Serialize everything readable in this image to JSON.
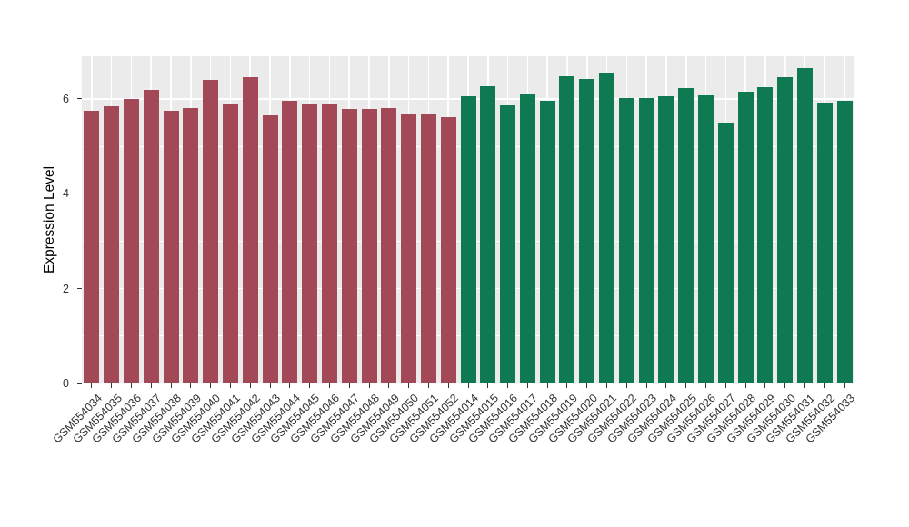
{
  "chart_data": {
    "type": "bar",
    "title": "",
    "xlabel": "",
    "ylabel": "Expression Level",
    "ylim": [
      0,
      6.9
    ],
    "yticks": [
      0,
      2,
      4,
      6
    ],
    "yticks_minor": [
      1,
      3,
      5
    ],
    "panel_bg": "#EBEBEB",
    "grid": "white horizontal major+minor lines, white vertical lines at each category center, no legend",
    "categories": [
      "GSM554034",
      "GSM554035",
      "GSM554036",
      "GSM554037",
      "GSM554038",
      "GSM554039",
      "GSM554040",
      "GSM554041",
      "GSM554042",
      "GSM554043",
      "GSM554044",
      "GSM554045",
      "GSM554046",
      "GSM554047",
      "GSM554048",
      "GSM554049",
      "GSM554050",
      "GSM554051",
      "GSM554052",
      "GSM554014",
      "GSM554015",
      "GSM554016",
      "GSM554017",
      "GSM554018",
      "GSM554019",
      "GSM554020",
      "GSM554021",
      "GSM554022",
      "GSM554023",
      "GSM554024",
      "GSM554025",
      "GSM554026",
      "GSM554027",
      "GSM554028",
      "GSM554029",
      "GSM554030",
      "GSM554031",
      "GSM554032",
      "GSM554033"
    ],
    "values": [
      5.75,
      5.85,
      6.0,
      6.2,
      5.75,
      5.8,
      6.4,
      5.9,
      6.45,
      5.65,
      5.97,
      5.9,
      5.88,
      5.78,
      5.78,
      5.8,
      5.68,
      5.68,
      5.62,
      6.05,
      6.27,
      5.87,
      6.12,
      5.97,
      6.48,
      6.42,
      6.55,
      6.02,
      6.02,
      6.05,
      6.22,
      6.07,
      5.5,
      6.15,
      6.25,
      6.45,
      6.65,
      5.92,
      5.97
    ],
    "bar_color_groups": [
      {
        "color": "#A24857",
        "from": 0,
        "to": 18
      },
      {
        "color": "#0F7A51",
        "from": 19,
        "to": 38
      }
    ]
  }
}
